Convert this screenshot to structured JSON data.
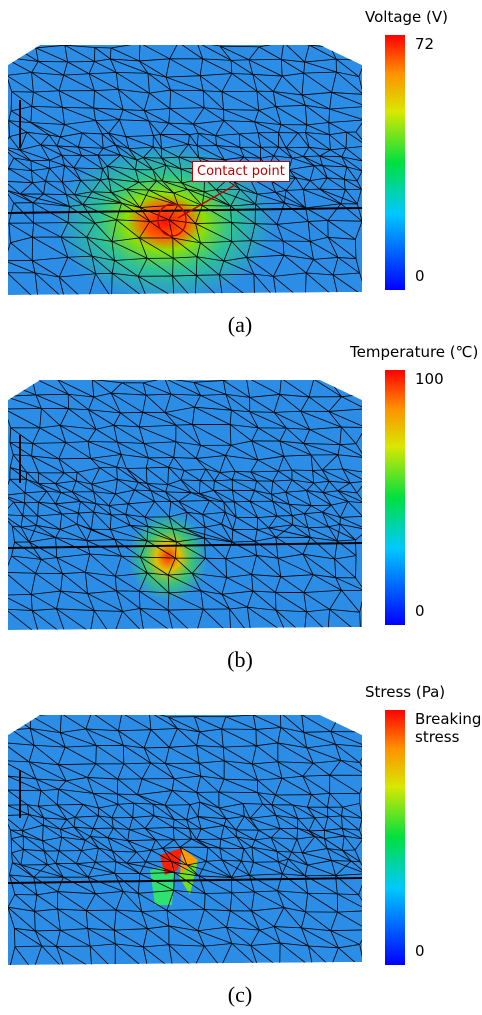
{
  "panels": [
    {
      "colorbar_title": "Voltage (V)",
      "max_label": 72,
      "min_label": 0,
      "annotation": "Contact point",
      "caption": "(a)"
    },
    {
      "colorbar_title": "Temperature (℃)",
      "max_label": 100,
      "min_label": 0,
      "caption": "(b)"
    },
    {
      "colorbar_title": "Stress (Pa)",
      "max_label": "Breaking stress",
      "min_label": 0,
      "caption": "(c)"
    }
  ]
}
